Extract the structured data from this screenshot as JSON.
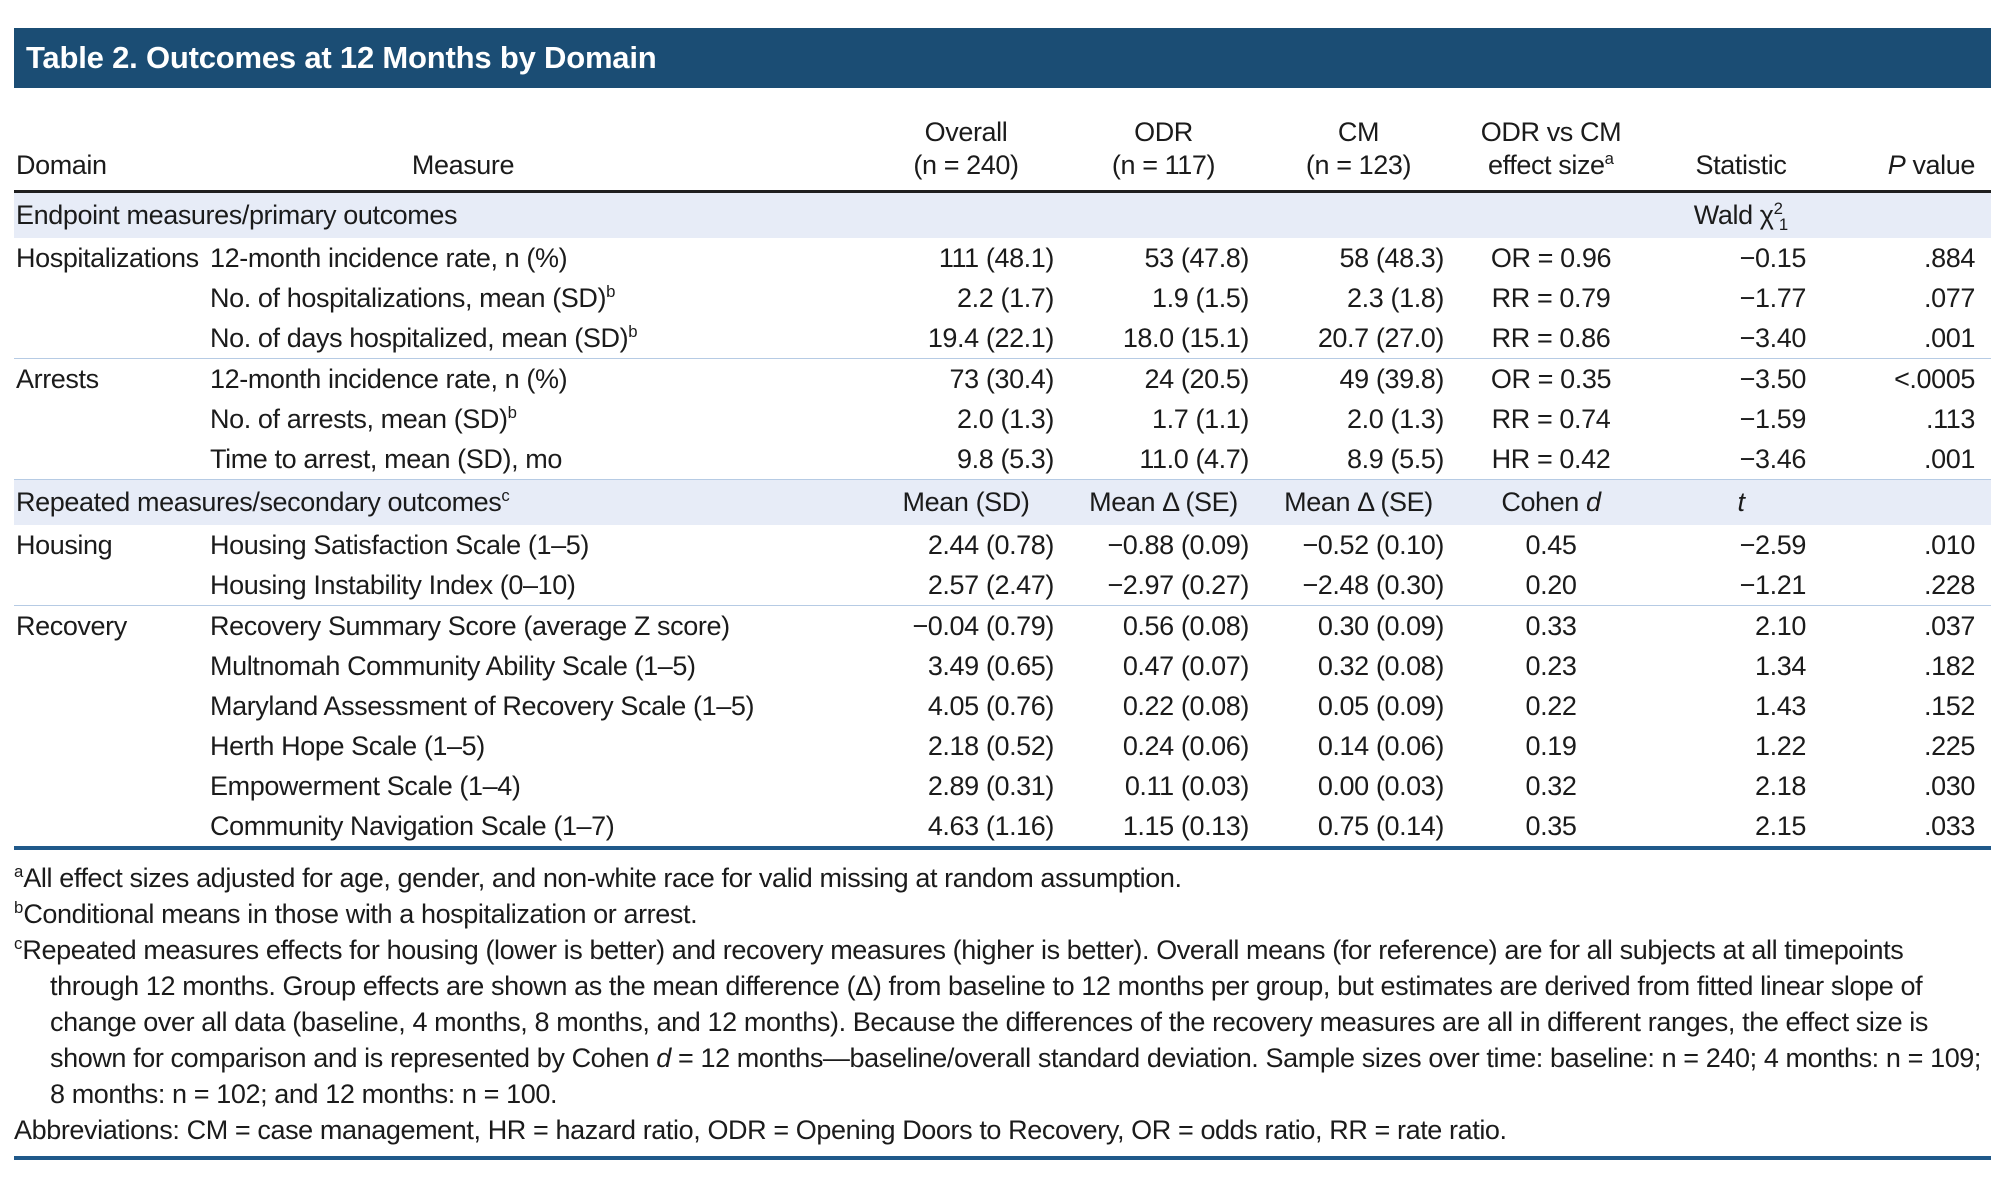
{
  "title": "Table 2. Outcomes at 12 Months by Domain",
  "header": {
    "domain": "Domain",
    "measure": "Measure",
    "overall1": "Overall",
    "overall2": "(n = 240)",
    "odr1": "ODR",
    "odr2": "(n = 117)",
    "cm1": "CM",
    "cm2": "(n = 123)",
    "effect1": "ODR vs CM",
    "effect2": "effect size",
    "effect_sup": "a",
    "statistic": "Statistic",
    "p_italic": "P",
    "p_rest": " value"
  },
  "band1": {
    "label": "Endpoint measures/primary outcomes",
    "stat_prefix": "Wald χ",
    "stat_sup": "2",
    "stat_sub": "1"
  },
  "band2": {
    "label": "Repeated measures/secondary outcomes",
    "label_sup": "c",
    "overall": "Mean (SD)",
    "odr": "Mean Δ (SE)",
    "cm": "Mean Δ (SE)",
    "effect_prefix": "Cohen ",
    "effect_italic": "d",
    "stat_italic": "t"
  },
  "rows": [
    {
      "domain": "Hospitalizations",
      "measure": "12-month incidence rate, n (%)",
      "sup": "",
      "overall": "111 (48.1)",
      "odr": "53 (47.8)",
      "cm": "58 (48.3)",
      "effect": "OR = 0.96",
      "stat": "−0.15",
      "p": ".884"
    },
    {
      "domain": "",
      "measure": "No. of hospitalizations, mean (SD)",
      "sup": "b",
      "overall": "2.2 (1.7)",
      "odr": "1.9 (1.5)",
      "cm": "2.3 (1.8)",
      "effect": "RR = 0.79",
      "stat": "−1.77",
      "p": ".077"
    },
    {
      "domain": "",
      "measure": "No. of days hospitalized, mean (SD)",
      "sup": "b",
      "overall": "19.4 (22.1)",
      "odr": "18.0 (15.1)",
      "cm": "20.7 (27.0)",
      "effect": "RR = 0.86",
      "stat": "−3.40",
      "p": ".001"
    },
    {
      "domain": "Arrests",
      "measure": "12-month incidence rate, n (%)",
      "sup": "",
      "overall": "73 (30.4)",
      "odr": "24 (20.5)",
      "cm": "49 (39.8)",
      "effect": "OR = 0.35",
      "stat": "−3.50",
      "p": "<.0005"
    },
    {
      "domain": "",
      "measure": "No. of arrests, mean (SD)",
      "sup": "b",
      "overall": "2.0 (1.3)",
      "odr": "1.7 (1.1)",
      "cm": "2.0 (1.3)",
      "effect": "RR = 0.74",
      "stat": "−1.59",
      "p": ".113"
    },
    {
      "domain": "",
      "measure": "Time to arrest, mean (SD), mo",
      "sup": "",
      "overall": "9.8 (5.3)",
      "odr": "11.0 (4.7)",
      "cm": "8.9 (5.5)",
      "effect": "HR = 0.42",
      "stat": "−3.46",
      "p": ".001"
    },
    {
      "domain": "Housing",
      "measure": "Housing Satisfaction Scale (1–5)",
      "sup": "",
      "overall": "2.44 (0.78)",
      "odr": "−0.88 (0.09)",
      "cm": "−0.52 (0.10)",
      "effect": "0.45",
      "stat": "−2.59",
      "p": ".010"
    },
    {
      "domain": "",
      "measure": "Housing Instability Index (0–10)",
      "sup": "",
      "overall": "2.57 (2.47)",
      "odr": "−2.97 (0.27)",
      "cm": "−2.48 (0.30)",
      "effect": "0.20",
      "stat": "−1.21",
      "p": ".228"
    },
    {
      "domain": "Recovery",
      "measure": "Recovery Summary Score (average Z score)",
      "sup": "",
      "overall": "−0.04 (0.79)",
      "odr": "0.56 (0.08)",
      "cm": "0.30 (0.09)",
      "effect": "0.33",
      "stat": "2.10",
      "p": ".037"
    },
    {
      "domain": "",
      "measure": "Multnomah Community Ability Scale (1–5)",
      "sup": "",
      "overall": "3.49 (0.65)",
      "odr": "0.47 (0.07)",
      "cm": "0.32 (0.08)",
      "effect": "0.23",
      "stat": "1.34",
      "p": ".182"
    },
    {
      "domain": "",
      "measure": "Maryland Assessment of Recovery Scale (1–5)",
      "sup": "",
      "overall": "4.05 (0.76)",
      "odr": "0.22 (0.08)",
      "cm": "0.05 (0.09)",
      "effect": "0.22",
      "stat": "1.43",
      "p": ".152"
    },
    {
      "domain": "",
      "measure": "Herth Hope Scale (1–5)",
      "sup": "",
      "overall": "2.18 (0.52)",
      "odr": "0.24 (0.06)",
      "cm": "0.14 (0.06)",
      "effect": "0.19",
      "stat": "1.22",
      "p": ".225"
    },
    {
      "domain": "",
      "measure": "Empowerment Scale (1–4)",
      "sup": "",
      "overall": "2.89 (0.31)",
      "odr": "0.11 (0.03)",
      "cm": "0.00 (0.03)",
      "effect": "0.32",
      "stat": "2.18",
      "p": ".030"
    },
    {
      "domain": "",
      "measure": "Community Navigation Scale (1–7)",
      "sup": "",
      "overall": "4.63 (1.16)",
      "odr": "1.15 (0.13)",
      "cm": "0.75 (0.14)",
      "effect": "0.35",
      "stat": "2.15",
      "p": ".033"
    }
  ],
  "footnotes": {
    "a_sup": "a",
    "a": "All effect sizes adjusted for age, gender, and non-white race for valid missing at random assumption.",
    "b_sup": "b",
    "b": "Conditional means in those with a hospitalization or arrest.",
    "c_sup": "c",
    "c_pre": "Repeated measures effects for housing (lower is better) and recovery measures (higher is better). Overall means (for reference) are for all subjects at all timepoints through 12 months. Group effects are shown as the mean difference (Δ) from baseline to 12 months per group, but estimates are derived from fitted linear slope of change over all data (baseline, 4 months, 8 months, and 12 months). Because the differences of the recovery measures are all in different ranges, the effect size is shown for comparison and is represented by Cohen ",
    "c_d": "d",
    "c_post": " = 12 months—baseline/overall standard deviation. Sample sizes over time: baseline: n = 240; 4 months: n = 109; 8 months: n = 102; and 12 months: n = 100.",
    "abbrev": "Abbreviations: CM = case management, HR = hazard ratio, ODR = Opening Doors to Recovery, OR = odds ratio, RR = rate ratio."
  },
  "colors": {
    "title_bar": "#1b4d74",
    "band_bg": "#e7ecf7",
    "rule_dark": "#20598a",
    "rule_light": "#b6cbe4",
    "header_rule": "#1f1f1f"
  }
}
